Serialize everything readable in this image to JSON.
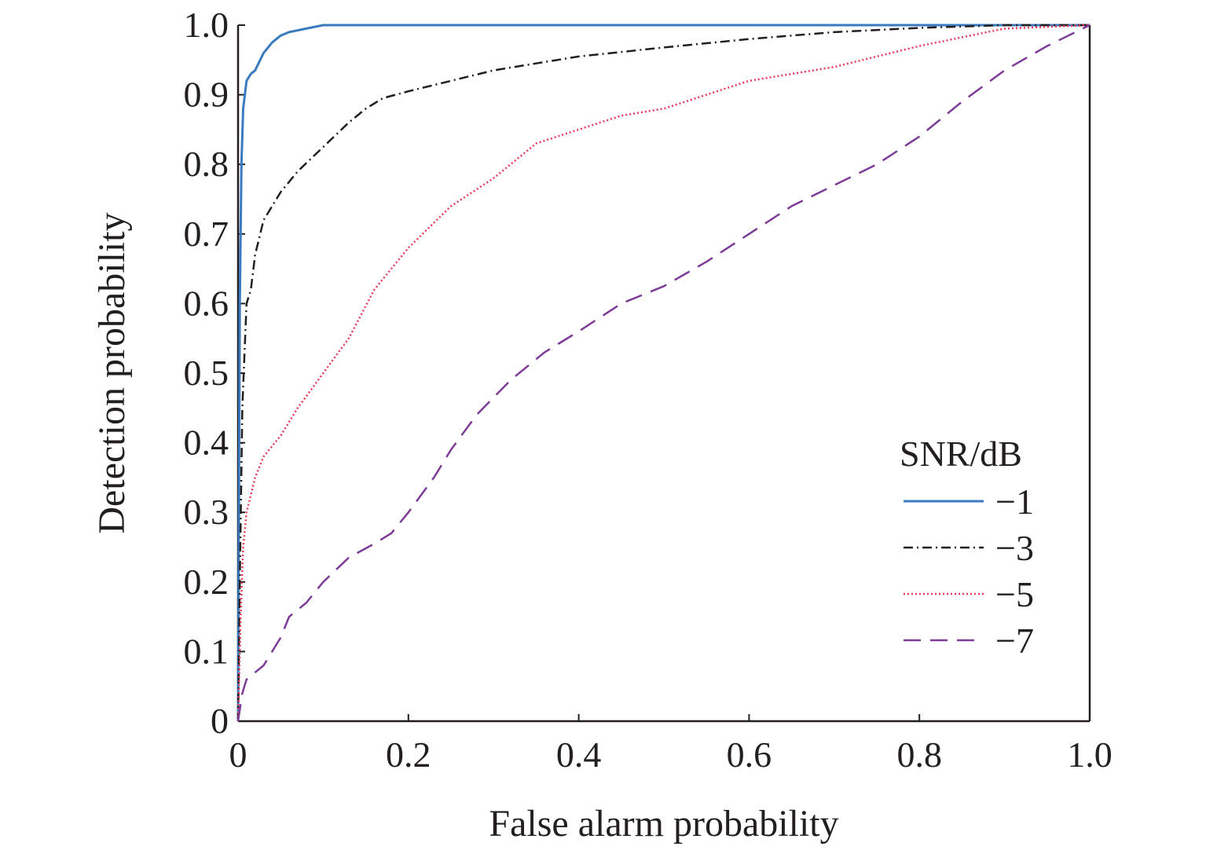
{
  "chart_data": {
    "type": "line",
    "title": "",
    "xlabel": "False alarm probability",
    "ylabel": "Detection probability",
    "xlim": [
      0,
      1
    ],
    "ylim": [
      0,
      1
    ],
    "x_ticks": [
      "0",
      "0.2",
      "0.4",
      "0.6",
      "0.8",
      "1.0"
    ],
    "y_ticks": [
      "0",
      "0.1",
      "0.2",
      "0.3",
      "0.4",
      "0.5",
      "0.6",
      "0.7",
      "0.8",
      "0.9",
      "1.0"
    ],
    "grid": false,
    "legend": {
      "title": "SNR/dB",
      "position": "lower-right"
    },
    "series": [
      {
        "name": "−1",
        "color": "#3a7bbf",
        "style": "solid",
        "points": [
          [
            0,
            0
          ],
          [
            0.002,
            0.6
          ],
          [
            0.004,
            0.8
          ],
          [
            0.006,
            0.88
          ],
          [
            0.01,
            0.92
          ],
          [
            0.015,
            0.93
          ],
          [
            0.02,
            0.935
          ],
          [
            0.03,
            0.96
          ],
          [
            0.04,
            0.975
          ],
          [
            0.05,
            0.985
          ],
          [
            0.06,
            0.99
          ],
          [
            0.08,
            0.995
          ],
          [
            0.1,
            1.0
          ],
          [
            0.2,
            1.0
          ],
          [
            0.4,
            1.0
          ],
          [
            0.6,
            1.0
          ],
          [
            0.8,
            1.0
          ],
          [
            1.0,
            1.0
          ]
        ]
      },
      {
        "name": "−3",
        "color": "#231f20",
        "style": "dashdot",
        "points": [
          [
            0,
            0
          ],
          [
            0.002,
            0.2
          ],
          [
            0.005,
            0.45
          ],
          [
            0.01,
            0.6
          ],
          [
            0.015,
            0.62
          ],
          [
            0.02,
            0.67
          ],
          [
            0.03,
            0.72
          ],
          [
            0.04,
            0.74
          ],
          [
            0.05,
            0.76
          ],
          [
            0.07,
            0.79
          ],
          [
            0.1,
            0.825
          ],
          [
            0.13,
            0.86
          ],
          [
            0.15,
            0.88
          ],
          [
            0.17,
            0.895
          ],
          [
            0.2,
            0.905
          ],
          [
            0.25,
            0.92
          ],
          [
            0.3,
            0.935
          ],
          [
            0.35,
            0.945
          ],
          [
            0.4,
            0.955
          ],
          [
            0.5,
            0.968
          ],
          [
            0.6,
            0.98
          ],
          [
            0.7,
            0.99
          ],
          [
            0.8,
            0.996
          ],
          [
            0.9,
            1.0
          ],
          [
            1.0,
            1.0
          ]
        ]
      },
      {
        "name": "−5",
        "color": "#e83a5a",
        "style": "dotted",
        "points": [
          [
            0,
            0
          ],
          [
            0.003,
            0.15
          ],
          [
            0.006,
            0.25
          ],
          [
            0.01,
            0.3
          ],
          [
            0.02,
            0.35
          ],
          [
            0.03,
            0.38
          ],
          [
            0.05,
            0.41
          ],
          [
            0.07,
            0.45
          ],
          [
            0.1,
            0.5
          ],
          [
            0.13,
            0.55
          ],
          [
            0.16,
            0.62
          ],
          [
            0.2,
            0.68
          ],
          [
            0.25,
            0.74
          ],
          [
            0.3,
            0.78
          ],
          [
            0.35,
            0.83
          ],
          [
            0.4,
            0.85
          ],
          [
            0.45,
            0.87
          ],
          [
            0.5,
            0.88
          ],
          [
            0.6,
            0.92
          ],
          [
            0.7,
            0.94
          ],
          [
            0.8,
            0.97
          ],
          [
            0.9,
            0.995
          ],
          [
            1.0,
            1.0
          ]
        ]
      },
      {
        "name": "−7",
        "color": "#7d3c98",
        "style": "dashed",
        "points": [
          [
            0,
            0
          ],
          [
            0.005,
            0.04
          ],
          [
            0.01,
            0.06
          ],
          [
            0.03,
            0.08
          ],
          [
            0.05,
            0.12
          ],
          [
            0.06,
            0.15
          ],
          [
            0.08,
            0.17
          ],
          [
            0.1,
            0.2
          ],
          [
            0.13,
            0.235
          ],
          [
            0.16,
            0.255
          ],
          [
            0.18,
            0.27
          ],
          [
            0.2,
            0.3
          ],
          [
            0.23,
            0.35
          ],
          [
            0.25,
            0.39
          ],
          [
            0.28,
            0.44
          ],
          [
            0.32,
            0.49
          ],
          [
            0.36,
            0.53
          ],
          [
            0.4,
            0.56
          ],
          [
            0.45,
            0.6
          ],
          [
            0.5,
            0.625
          ],
          [
            0.55,
            0.66
          ],
          [
            0.6,
            0.7
          ],
          [
            0.65,
            0.74
          ],
          [
            0.7,
            0.77
          ],
          [
            0.75,
            0.8
          ],
          [
            0.8,
            0.84
          ],
          [
            0.85,
            0.89
          ],
          [
            0.9,
            0.935
          ],
          [
            0.95,
            0.97
          ],
          [
            1.0,
            1.0
          ]
        ]
      }
    ]
  }
}
